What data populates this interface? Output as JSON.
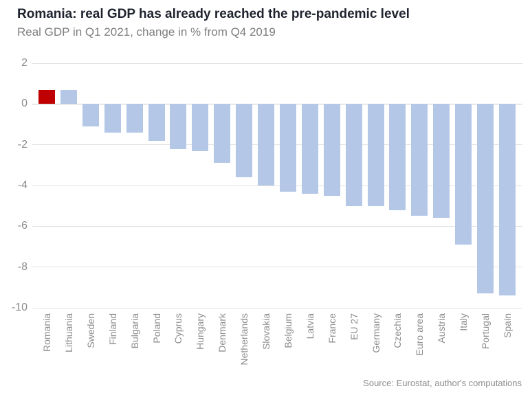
{
  "header": {
    "title": "Romania: real GDP has already reached the pre-pandemic level",
    "subtitle": "Real GDP in Q1 2021, change in % from Q4 2019"
  },
  "chart_data": {
    "type": "bar",
    "title": "Romania: real GDP has already reached the pre-pandemic level",
    "subtitle": "Real GDP in Q1 2021, change in % from Q4 2019",
    "categories": [
      "Romania",
      "Lithuania",
      "Sweden",
      "Finland",
      "Bulgaria",
      "Poland",
      "Cyprus",
      "Hungary",
      "Denmark",
      "Netherlands",
      "Slovakia",
      "Belgium",
      "Latvia",
      "France",
      "EU 27",
      "Germany",
      "Czechia",
      "Euro area",
      "Austria",
      "Italy",
      "Portugal",
      "Spain"
    ],
    "values": [
      0.7,
      0.7,
      -1.1,
      -1.4,
      -1.4,
      -1.8,
      -2.2,
      -2.3,
      -2.9,
      -3.6,
      -4.0,
      -4.3,
      -4.4,
      -4.5,
      -5.0,
      -5.0,
      -5.2,
      -5.5,
      -5.6,
      -6.9,
      -9.3,
      -9.4
    ],
    "highlight_category": "Romania",
    "colors": {
      "default_bar": "#b4c7e7",
      "highlight_bar": "#c00000",
      "gridline": "#e2e2e2",
      "zero_line": "#c9c9c9",
      "axis_text": "#8c8c8c",
      "title_text": "#20242f",
      "subtitle_text": "#7f7f7f"
    },
    "yticks": [
      2,
      0,
      -2,
      -4,
      -6,
      -8,
      -10
    ],
    "ylim": [
      -10,
      2
    ],
    "xlabel": "",
    "ylabel": "",
    "grid": "horizontal",
    "legend": "none"
  },
  "footer": {
    "source": "Source: Eurostat, author's computations"
  }
}
